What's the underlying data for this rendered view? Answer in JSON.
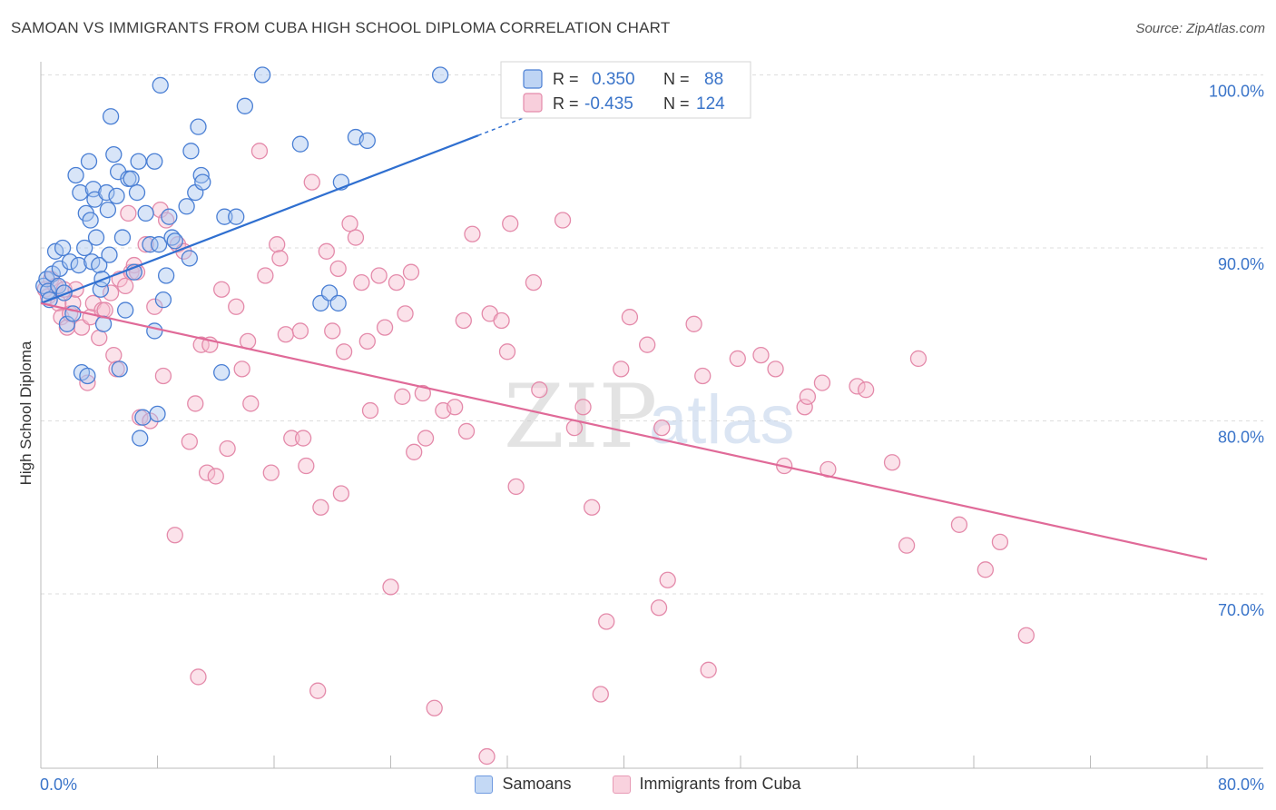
{
  "title": "SAMOAN VS IMMIGRANTS FROM CUBA HIGH SCHOOL DIPLOMA CORRELATION CHART",
  "source": "Source: ZipAtlas.com",
  "watermark": {
    "zip": "ZIP",
    "atlas": "atlas"
  },
  "colors": {
    "blue": "#4a7fd4",
    "blue_fill": "#a8c6f0",
    "blue_line": "#2f6fd0",
    "pink": "#e48aaa",
    "pink_fill": "#f6bfd0",
    "pink_line": "#e06a98",
    "axis_label": "#3a74c9",
    "grid": "#dddddd"
  },
  "stats_legend": {
    "rows": [
      {
        "r_label": "R =",
        "r_value": "0.350",
        "n_label": "N =",
        "n_value": "88"
      },
      {
        "r_label": "R =",
        "r_value": "-0.435",
        "n_label": "N =",
        "n_value": "124"
      }
    ]
  },
  "bottom_legend": {
    "samoans": "Samoans",
    "cuba": "Immigrants from Cuba"
  },
  "chart_data": {
    "type": "scatter",
    "title": "SAMOAN VS IMMIGRANTS FROM CUBA HIGH SCHOOL DIPLOMA CORRELATION CHART",
    "ylabel": "High School Diploma",
    "xlim": [
      0,
      80
    ],
    "ylim": [
      60.5,
      101.5
    ],
    "x_tick_labels": [
      "0.0%",
      "80.0%"
    ],
    "y_ticks": [
      70,
      80,
      90,
      100
    ],
    "y_tick_labels": [
      "70.0%",
      "80.0%",
      "90.0%",
      "100.0%"
    ],
    "grid": true,
    "legend_position": "top-center",
    "series": [
      {
        "name": "Samoans",
        "r": 0.35,
        "n": 88,
        "trend": {
          "x": [
            0,
            30
          ],
          "y": [
            86.8,
            96.5
          ],
          "dashed_to": [
            34,
            97.8
          ]
        },
        "points": [
          [
            0.2,
            87.8
          ],
          [
            0.4,
            88.2
          ],
          [
            0.5,
            87.5
          ],
          [
            0.6,
            87.0
          ],
          [
            0.8,
            88.5
          ],
          [
            1.0,
            89.8
          ],
          [
            1.2,
            87.8
          ],
          [
            1.3,
            88.8
          ],
          [
            1.5,
            90.0
          ],
          [
            1.6,
            87.4
          ],
          [
            1.8,
            85.6
          ],
          [
            2.0,
            89.2
          ],
          [
            2.2,
            86.2
          ],
          [
            2.4,
            94.2
          ],
          [
            2.6,
            89.0
          ],
          [
            2.7,
            93.2
          ],
          [
            2.8,
            82.8
          ],
          [
            3.0,
            90.0
          ],
          [
            3.1,
            92.0
          ],
          [
            3.2,
            82.6
          ],
          [
            3.3,
            95.0
          ],
          [
            3.4,
            91.6
          ],
          [
            3.5,
            89.2
          ],
          [
            3.6,
            93.4
          ],
          [
            3.7,
            92.8
          ],
          [
            3.8,
            90.6
          ],
          [
            4.0,
            89.0
          ],
          [
            4.1,
            87.6
          ],
          [
            4.2,
            88.2
          ],
          [
            4.3,
            85.6
          ],
          [
            4.5,
            93.2
          ],
          [
            4.6,
            92.2
          ],
          [
            4.7,
            89.6
          ],
          [
            4.8,
            97.6
          ],
          [
            5.0,
            95.4
          ],
          [
            5.2,
            93.0
          ],
          [
            5.3,
            94.4
          ],
          [
            5.4,
            83.0
          ],
          [
            5.6,
            90.6
          ],
          [
            5.8,
            86.4
          ],
          [
            6.0,
            94.0
          ],
          [
            6.2,
            94.0
          ],
          [
            6.4,
            88.6
          ],
          [
            6.6,
            93.2
          ],
          [
            6.7,
            95.0
          ],
          [
            6.8,
            79.0
          ],
          [
            7.0,
            80.2
          ],
          [
            7.2,
            92.0
          ],
          [
            7.5,
            90.2
          ],
          [
            7.8,
            85.2
          ],
          [
            7.8,
            95.0
          ],
          [
            8.0,
            80.4
          ],
          [
            8.1,
            90.2
          ],
          [
            8.2,
            99.4
          ],
          [
            8.4,
            87.0
          ],
          [
            8.6,
            88.4
          ],
          [
            8.8,
            91.8
          ],
          [
            9.0,
            90.6
          ],
          [
            9.2,
            90.4
          ],
          [
            10.0,
            92.4
          ],
          [
            10.2,
            89.4
          ],
          [
            10.3,
            95.6
          ],
          [
            10.6,
            93.2
          ],
          [
            10.8,
            97.0
          ],
          [
            11.0,
            94.2
          ],
          [
            11.1,
            93.8
          ],
          [
            12.4,
            82.8
          ],
          [
            12.6,
            91.8
          ],
          [
            13.4,
            91.8
          ],
          [
            14.0,
            98.2
          ],
          [
            15.2,
            100.0
          ],
          [
            17.8,
            96.0
          ],
          [
            19.2,
            86.8
          ],
          [
            19.8,
            87.4
          ],
          [
            20.4,
            86.8
          ],
          [
            20.6,
            93.8
          ],
          [
            21.6,
            96.4
          ],
          [
            22.4,
            96.2
          ],
          [
            27.4,
            100.0
          ]
        ]
      },
      {
        "name": "Immigrants from Cuba",
        "r": -0.435,
        "n": 124,
        "trend": {
          "x": [
            0,
            80
          ],
          "y": [
            86.8,
            72.0
          ]
        },
        "points": [
          [
            0.3,
            87.6
          ],
          [
            0.5,
            87.2
          ],
          [
            0.7,
            88.2
          ],
          [
            1.0,
            87.8
          ],
          [
            1.2,
            86.8
          ],
          [
            1.4,
            86.0
          ],
          [
            1.6,
            87.6
          ],
          [
            1.8,
            85.4
          ],
          [
            2.0,
            86.2
          ],
          [
            2.2,
            86.8
          ],
          [
            2.4,
            87.6
          ],
          [
            2.8,
            85.4
          ],
          [
            3.2,
            82.2
          ],
          [
            3.4,
            86.0
          ],
          [
            3.6,
            86.8
          ],
          [
            4.0,
            84.8
          ],
          [
            4.2,
            86.4
          ],
          [
            4.4,
            86.4
          ],
          [
            4.8,
            87.4
          ],
          [
            5.0,
            83.8
          ],
          [
            5.2,
            83.0
          ],
          [
            5.4,
            88.2
          ],
          [
            5.8,
            87.8
          ],
          [
            6.0,
            92.0
          ],
          [
            6.2,
            88.6
          ],
          [
            6.4,
            89.0
          ],
          [
            6.6,
            88.6
          ],
          [
            6.8,
            80.2
          ],
          [
            7.2,
            90.2
          ],
          [
            7.5,
            80.0
          ],
          [
            7.8,
            86.6
          ],
          [
            8.2,
            92.2
          ],
          [
            8.4,
            82.6
          ],
          [
            8.6,
            91.6
          ],
          [
            9.2,
            73.4
          ],
          [
            9.4,
            90.2
          ],
          [
            9.8,
            89.8
          ],
          [
            10.2,
            78.8
          ],
          [
            10.6,
            81.0
          ],
          [
            10.8,
            65.2
          ],
          [
            11.0,
            84.4
          ],
          [
            11.4,
            77.0
          ],
          [
            11.6,
            84.4
          ],
          [
            12.0,
            76.8
          ],
          [
            12.4,
            87.6
          ],
          [
            12.8,
            78.4
          ],
          [
            13.4,
            86.6
          ],
          [
            13.8,
            83.0
          ],
          [
            14.2,
            84.6
          ],
          [
            14.4,
            81.0
          ],
          [
            15.0,
            95.6
          ],
          [
            15.4,
            88.4
          ],
          [
            15.8,
            77.0
          ],
          [
            16.2,
            90.2
          ],
          [
            16.4,
            89.4
          ],
          [
            16.8,
            85.0
          ],
          [
            17.2,
            79.0
          ],
          [
            17.8,
            85.2
          ],
          [
            18.0,
            79.0
          ],
          [
            18.2,
            77.4
          ],
          [
            18.6,
            93.8
          ],
          [
            19.0,
            64.4
          ],
          [
            19.2,
            75.0
          ],
          [
            19.6,
            89.8
          ],
          [
            20.0,
            85.2
          ],
          [
            20.4,
            88.8
          ],
          [
            20.6,
            75.8
          ],
          [
            20.8,
            84.0
          ],
          [
            21.2,
            91.4
          ],
          [
            21.6,
            90.6
          ],
          [
            22.0,
            88.0
          ],
          [
            22.4,
            84.6
          ],
          [
            22.6,
            80.6
          ],
          [
            23.2,
            88.4
          ],
          [
            23.6,
            85.4
          ],
          [
            24.0,
            70.4
          ],
          [
            24.4,
            88.0
          ],
          [
            24.8,
            81.4
          ],
          [
            25.0,
            86.2
          ],
          [
            25.4,
            88.6
          ],
          [
            25.6,
            78.2
          ],
          [
            26.2,
            81.6
          ],
          [
            26.4,
            79.0
          ],
          [
            27.0,
            63.4
          ],
          [
            27.6,
            80.6
          ],
          [
            28.4,
            80.8
          ],
          [
            29.0,
            85.8
          ],
          [
            29.2,
            79.4
          ],
          [
            29.6,
            90.8
          ],
          [
            30.6,
            60.6
          ],
          [
            30.8,
            86.2
          ],
          [
            31.6,
            85.8
          ],
          [
            32.0,
            84.0
          ],
          [
            32.2,
            91.4
          ],
          [
            32.6,
            76.2
          ],
          [
            33.8,
            88.0
          ],
          [
            34.2,
            81.8
          ],
          [
            35.8,
            91.6
          ],
          [
            36.6,
            79.6
          ],
          [
            37.2,
            80.8
          ],
          [
            37.8,
            75.0
          ],
          [
            38.4,
            64.2
          ],
          [
            38.8,
            68.4
          ],
          [
            39.8,
            83.0
          ],
          [
            40.4,
            86.0
          ],
          [
            41.6,
            84.4
          ],
          [
            42.4,
            69.2
          ],
          [
            42.6,
            79.6
          ],
          [
            43.0,
            70.8
          ],
          [
            44.8,
            85.6
          ],
          [
            45.4,
            82.6
          ],
          [
            45.8,
            65.6
          ],
          [
            47.8,
            83.6
          ],
          [
            49.4,
            83.8
          ],
          [
            50.4,
            83.0
          ],
          [
            51.0,
            77.4
          ],
          [
            52.4,
            80.8
          ],
          [
            52.6,
            81.4
          ],
          [
            53.6,
            82.2
          ],
          [
            54.0,
            77.2
          ],
          [
            56.0,
            82.0
          ],
          [
            56.6,
            81.8
          ],
          [
            58.4,
            77.6
          ],
          [
            59.4,
            72.8
          ],
          [
            60.2,
            83.6
          ],
          [
            63.0,
            74.0
          ],
          [
            64.8,
            71.4
          ],
          [
            65.8,
            73.0
          ],
          [
            67.6,
            67.6
          ]
        ]
      }
    ]
  }
}
